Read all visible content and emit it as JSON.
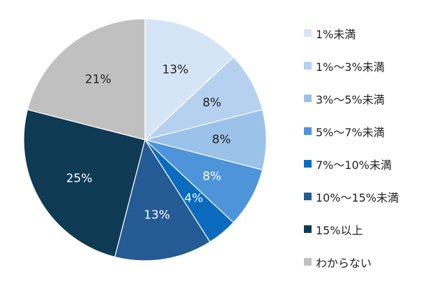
{
  "chart_data": {
    "type": "pie",
    "title": "",
    "start_angle_deg": 0,
    "direction": "clockwise",
    "legend_position": "right",
    "categories": [
      "1%未満",
      "1%～3%未満",
      "3%～5%未満",
      "5%～7%未満",
      "7%～10%未満",
      "10%～15%未満",
      "15%以上",
      "わからない"
    ],
    "values": [
      13,
      8,
      8,
      8,
      4,
      13,
      25,
      21
    ],
    "data_labels": [
      "13%",
      "8%",
      "8%",
      "8%",
      "4%",
      "13%",
      "25%",
      "21%"
    ],
    "colors": [
      "#d6e5f5",
      "#b6d1ef",
      "#9bc2e8",
      "#4d94db",
      "#0b6bbf",
      "#245b94",
      "#0e3a54",
      "#c0c0c0"
    ],
    "label_colors": [
      "#222222",
      "#222222",
      "#222222",
      "#ffffff",
      "#ffffff",
      "#ffffff",
      "#ffffff",
      "#222222"
    ]
  }
}
